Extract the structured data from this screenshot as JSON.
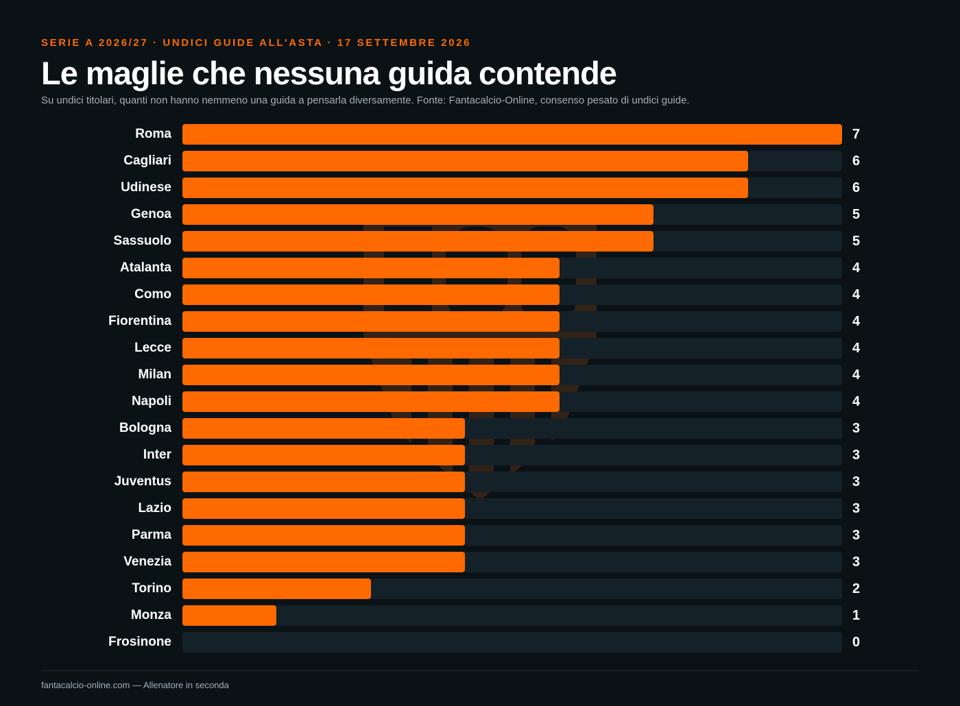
{
  "header": {
    "kicker": "SERIE A 2026/27 · UNDICI GUIDE ALL'ASTA · 17 SETTEMBRE 2026",
    "title": "Le maglie che nessuna guida contende",
    "subtitle": "Su undici titolari, quanti non hanno nemmeno una guida a pensarla diversamente. Fonte: Fantacalcio-Online, consenso pesato di undici guide."
  },
  "footer": {
    "credit": "fantacalcio-online.com — Allenatore in seconda"
  },
  "colors": {
    "background": "#0b1216",
    "accent": "#ff6a00",
    "track": "#142129",
    "muted_text": "#9fb0b8"
  },
  "chart_data": {
    "type": "bar",
    "orientation": "horizontal",
    "categories": [
      "Roma",
      "Cagliari",
      "Udinese",
      "Genoa",
      "Sassuolo",
      "Atalanta",
      "Como",
      "Fiorentina",
      "Lecce",
      "Milan",
      "Napoli",
      "Bologna",
      "Inter",
      "Juventus",
      "Lazio",
      "Parma",
      "Venezia",
      "Torino",
      "Monza",
      "Frosinone"
    ],
    "values": [
      7,
      6,
      6,
      5,
      5,
      4,
      4,
      4,
      4,
      4,
      4,
      3,
      3,
      3,
      3,
      3,
      3,
      2,
      1,
      0
    ],
    "title": "Le maglie che nessuna guida contende",
    "subtitle": "Su undici titolari, quanti non hanno nemmeno una guida a pensarla diversamente. Fonte: Fantacalcio-Online, consenso pesato di undici guide.",
    "xlim": [
      0,
      7
    ],
    "grid": false,
    "legend": "none",
    "value_labels": true
  }
}
